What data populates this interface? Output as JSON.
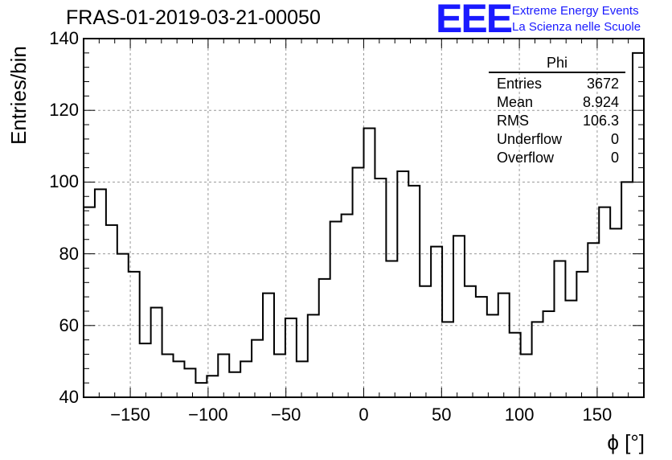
{
  "chart_data": {
    "type": "histogram",
    "title": "FRAS-01-2019-03-21-00050",
    "xlabel": "ϕ [°]",
    "ylabel": "Entries/bin",
    "xlim": [
      -180,
      180
    ],
    "ylim": [
      40,
      140
    ],
    "grid": true,
    "bin_width": 7.2,
    "x_ticks": [
      -150,
      -100,
      -50,
      0,
      50,
      100,
      150
    ],
    "x_tick_labels": [
      "−150",
      "−100",
      "−50",
      "0",
      "50",
      "100",
      "150"
    ],
    "y_ticks": [
      40,
      60,
      80,
      100,
      120,
      140
    ],
    "y_tick_labels": [
      "40",
      "60",
      "80",
      "100",
      "120",
      "140"
    ],
    "bin_low_edges": [
      -180,
      -172.8,
      -165.6,
      -158.4,
      -151.2,
      -144,
      -136.8,
      -129.6,
      -122.4,
      -115.2,
      -108,
      -100.8,
      -93.6,
      -86.4,
      -79.2,
      -72,
      -64.8,
      -57.6,
      -50.4,
      -43.2,
      -36,
      -28.8,
      -21.6,
      -14.4,
      -7.2,
      0,
      7.2,
      14.4,
      21.6,
      28.8,
      36,
      43.2,
      50.4,
      57.6,
      64.8,
      72,
      79.2,
      86.4,
      93.6,
      100.8,
      108,
      115.2,
      122.4,
      129.6,
      136.8,
      144,
      151.2,
      158.4,
      165.6,
      172.8
    ],
    "values": [
      93,
      98,
      88,
      80,
      75,
      55,
      65,
      52,
      50,
      48,
      44,
      46,
      52,
      47,
      50,
      56,
      69,
      52,
      62,
      50,
      63,
      73,
      89,
      91,
      104,
      115,
      101,
      78,
      103,
      99,
      71,
      82,
      61,
      85,
      71,
      68,
      63,
      69,
      58,
      52,
      61,
      64,
      78,
      67,
      75,
      83,
      93,
      87,
      100,
      136
    ],
    "stats": {
      "name": "Phi",
      "rows": [
        {
          "label": "Entries",
          "value": "3672"
        },
        {
          "label": "Mean",
          "value": "8.924"
        },
        {
          "label": "RMS",
          "value": "106.3"
        },
        {
          "label": "Underflow",
          "value": "0"
        },
        {
          "label": "Overflow",
          "value": "0"
        }
      ]
    }
  },
  "header": {
    "logo_text": "EEE",
    "org_line1": "Extreme Energy Events",
    "org_line2": "La Scienza nelle Scuole"
  },
  "colors": {
    "line": "#000000",
    "grid": "#999999",
    "brand": "#1a1aff"
  }
}
